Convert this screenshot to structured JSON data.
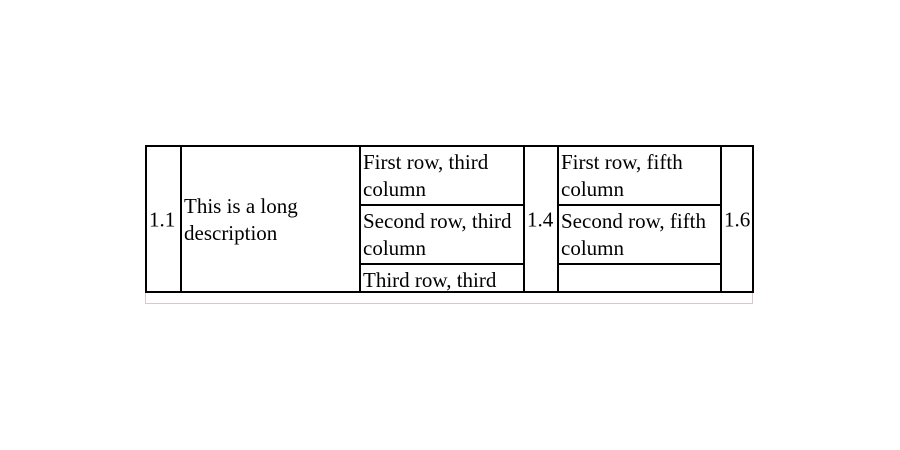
{
  "table": {
    "col1": "1.1",
    "col2": "This is a long description",
    "col3": {
      "row1": "First row, third column",
      "row2": "Second row, third column",
      "row3": "Third row, third"
    },
    "col4": "1.4",
    "col5": {
      "row1": "First row, fifth column",
      "row2": "Second row, fifth column",
      "row3": ""
    },
    "col6": "1.6"
  }
}
